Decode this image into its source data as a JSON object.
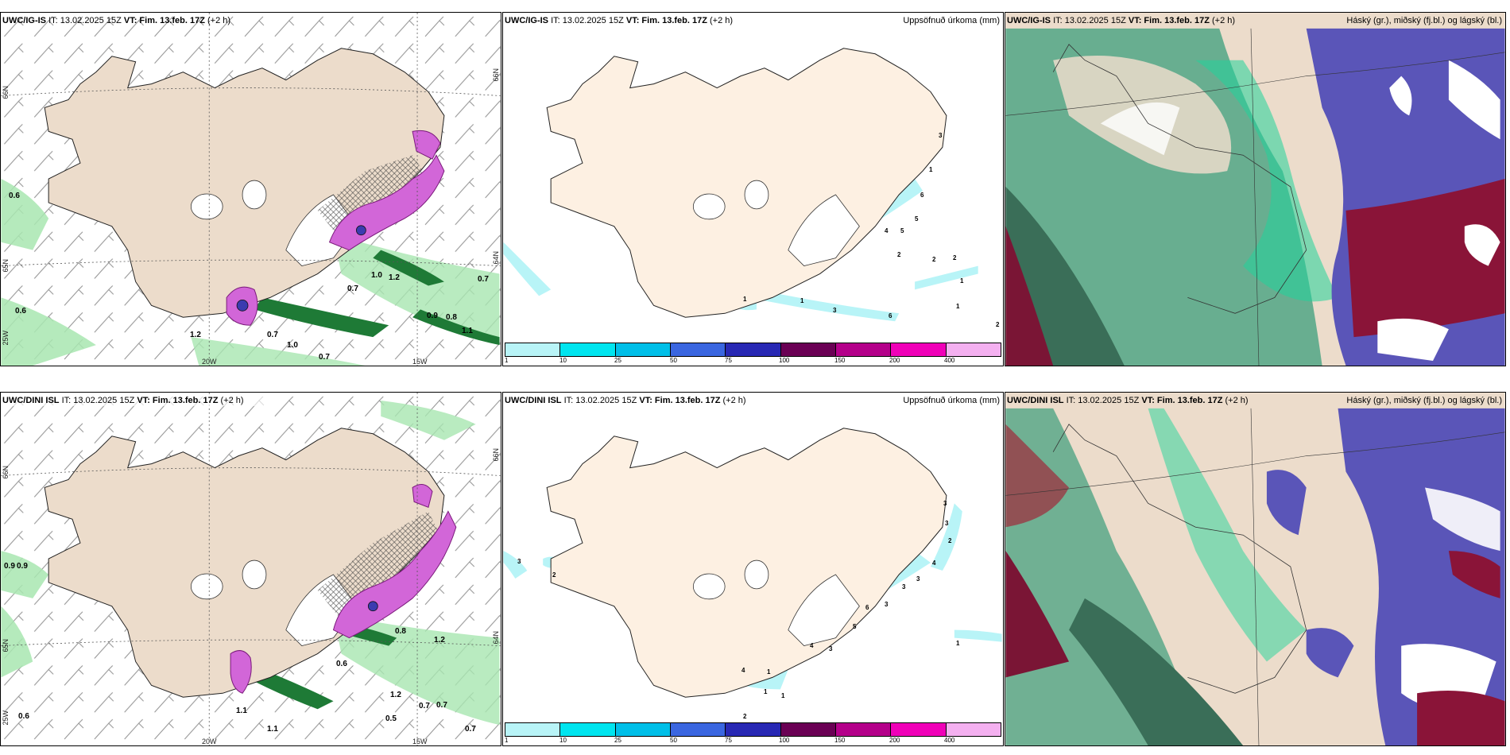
{
  "row1": {
    "title_model": "UWC/IG-IS",
    "title_time": "IT: 13.02.2025 15Z",
    "title_vt": "VT: Fim. 13.feb. 17Z",
    "title_lead": "(+2 h)"
  },
  "row2": {
    "title_model": "UWC/DINI ISL",
    "title_time": "IT: 13.02.2025 15Z",
    "title_vt": "VT: Fim. 13.feb. 17Z",
    "title_lead": "(+2 h)"
  },
  "precip_label": "Uppsöfnuð úrkoma (mm)",
  "cloud_label": "Háský (gr.), miðský (fj.bl.) og lágský (bl.)",
  "axes": {
    "lat1": "66N",
    "lat2": "64N",
    "lon1": "20W",
    "lon2": "15W",
    "lat_left": "65N",
    "lat_low": "25W"
  },
  "colorbar": {
    "colors": [
      "#b8f4f7",
      "#00e5ef",
      "#00bfe8",
      "#3a66e0",
      "#2828b4",
      "#6a0054",
      "#b4008a",
      "#f000b8",
      "#f4b0f0"
    ],
    "ticks": [
      "1",
      "10",
      "25",
      "50",
      "75",
      "100",
      "150",
      "200",
      "400"
    ]
  },
  "wind_labels_top": [
    "0.6",
    "0.6",
    "1.2",
    "0.7",
    "1.0",
    "0.7",
    "0.7",
    "1.0",
    "1.2",
    "0.9",
    "0.8",
    "0.7",
    "1.1"
  ],
  "wind_labels_bottom": [
    "0.9",
    "0.9",
    "1.1",
    "0.6",
    "0.5",
    "1.2",
    "0.7",
    "0.7",
    "1.1",
    "0.8",
    "0.7",
    "0.6",
    "1.2"
  ],
  "precip_labels_top": [
    "3",
    "1",
    "6",
    "5",
    "5",
    "4",
    "2",
    "2",
    "2",
    "1",
    "3",
    "6",
    "1",
    "2",
    "1",
    "1"
  ],
  "precip_labels_bottom": [
    "3",
    "2",
    "3",
    "3",
    "2",
    "4",
    "3",
    "3",
    "3",
    "6",
    "5",
    "3",
    "4",
    "4",
    "1",
    "1",
    "1",
    "1",
    "2"
  ]
}
